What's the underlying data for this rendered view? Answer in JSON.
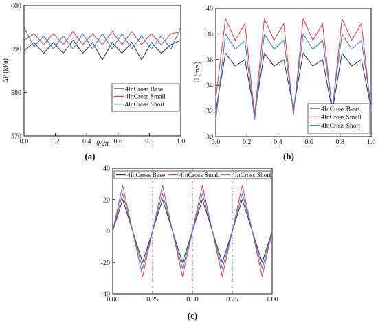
{
  "colors": {
    "base": "#3a3a55",
    "small": "#e8434b",
    "short": "#3f7fd4"
  },
  "chart_data": [
    {
      "panel_label": "(a)",
      "type": "line",
      "xlabel": "θ/2π",
      "ylabel": "ΔP (kPa)",
      "xlim": [
        0.0,
        1.0
      ],
      "ylim": [
        570,
        600
      ],
      "xticks": [
        "0.0",
        "0.2",
        "0.4",
        "0.6",
        "0.8",
        "1.0"
      ],
      "yticks": [
        "570",
        "580",
        "590",
        "600"
      ],
      "legend": "bottom-right",
      "x": [
        0.0,
        0.0625,
        0.125,
        0.1875,
        0.25,
        0.3125,
        0.375,
        0.4375,
        0.5,
        0.5625,
        0.625,
        0.6875,
        0.75,
        0.8125,
        0.875,
        0.9375,
        1.0
      ],
      "series": [
        {
          "name": "4InCross Base",
          "values": [
            589.5,
            591.5,
            589.0,
            591.5,
            589.0,
            592.0,
            589.0,
            591.5,
            587.5,
            591.5,
            589.0,
            591.5,
            587.5,
            591.5,
            589.0,
            591.0,
            592.0
          ]
        },
        {
          "name": "4InCross Small",
          "values": [
            592.0,
            593.5,
            591.0,
            593.5,
            591.0,
            594.0,
            591.0,
            593.5,
            591.0,
            594.0,
            591.0,
            594.0,
            591.0,
            593.5,
            591.0,
            593.5,
            594.0
          ]
        },
        {
          "name": "4InCross Short",
          "values": [
            595.0,
            590.5,
            593.0,
            590.0,
            593.0,
            590.0,
            593.5,
            590.0,
            593.5,
            590.0,
            593.5,
            590.0,
            593.0,
            590.0,
            593.0,
            590.0,
            595.0
          ]
        }
      ]
    },
    {
      "panel_label": "(b)",
      "type": "line",
      "xlabel": "",
      "ylabel": "U (m/s)",
      "xlim": [
        0.0,
        1.0
      ],
      "ylim": [
        30,
        40
      ],
      "xticks": [
        "0.0",
        "0.2",
        "0.4",
        "0.6",
        "0.8",
        "1.0"
      ],
      "yticks": [
        "30",
        "32",
        "34",
        "36",
        "38",
        "40"
      ],
      "legend": "bottom-right",
      "x": [
        0.0,
        0.0625,
        0.125,
        0.1875,
        0.25,
        0.3125,
        0.375,
        0.4375,
        0.5,
        0.5625,
        0.625,
        0.6875,
        0.75,
        0.8125,
        0.875,
        0.9375,
        1.0
      ],
      "series": [
        {
          "name": "4InCross Base",
          "values": [
            32.0,
            36.5,
            35.5,
            36.0,
            31.8,
            36.5,
            35.5,
            36.0,
            32.2,
            36.5,
            35.5,
            36.0,
            32.0,
            36.5,
            35.5,
            36.0,
            32.2
          ]
        },
        {
          "name": "4InCross Small",
          "values": [
            33.0,
            39.2,
            37.5,
            38.8,
            31.7,
            39.2,
            37.5,
            38.8,
            31.7,
            39.2,
            37.5,
            38.8,
            32.0,
            39.2,
            37.5,
            38.8,
            32.0
          ]
        },
        {
          "name": "4InCross Short",
          "values": [
            31.3,
            38.0,
            36.8,
            37.5,
            31.3,
            38.0,
            36.8,
            37.5,
            32.0,
            38.0,
            36.8,
            37.5,
            32.3,
            38.0,
            36.8,
            37.5,
            32.3
          ]
        }
      ]
    },
    {
      "panel_label": "(c)",
      "type": "line",
      "xlabel": "",
      "ylabel": "",
      "xlim": [
        0.0,
        1.0
      ],
      "ylim": [
        -40,
        40
      ],
      "xticks": [
        "0.00",
        "0.25",
        "0.50",
        "0.75",
        "1.00"
      ],
      "yticks": [
        "-40",
        "-20",
        "0",
        "20",
        "40"
      ],
      "vlines": [
        0.25,
        0.5,
        0.75
      ],
      "legend": "top",
      "x": [
        0.0,
        0.0625,
        0.125,
        0.1875,
        0.25,
        0.3125,
        0.375,
        0.4375,
        0.5,
        0.5625,
        0.625,
        0.6875,
        0.75,
        0.8125,
        0.875,
        0.9375,
        1.0
      ],
      "series": [
        {
          "name": "4InCross Base",
          "values": [
            0,
            20,
            0,
            -20,
            0,
            20,
            0,
            -20,
            0,
            20,
            0,
            -20,
            0,
            20,
            0,
            -20,
            0
          ]
        },
        {
          "name": "4InCross Small",
          "values": [
            0,
            29,
            0,
            -29,
            0,
            29,
            0,
            -29,
            0,
            29,
            0,
            -29,
            0,
            29,
            0,
            -29,
            0
          ]
        },
        {
          "name": "4InCross Short",
          "values": [
            0,
            24,
            0,
            -24,
            0,
            24,
            0,
            -24,
            0,
            24,
            0,
            -24,
            0,
            24,
            0,
            -24,
            0
          ]
        }
      ]
    }
  ]
}
